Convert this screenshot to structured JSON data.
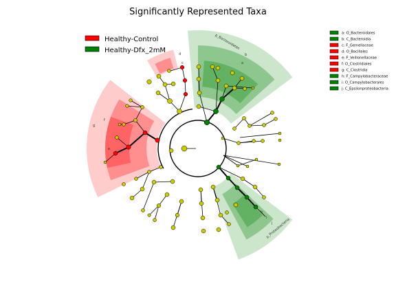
{
  "title": "Significantly Represented Taxa",
  "legend": {
    "groups": [
      {
        "label": "Healthy-Control",
        "color": "#ff0000"
      },
      {
        "label": "Healthy-Dfx_2mM",
        "color": "#008000"
      }
    ]
  },
  "key": [
    {
      "code": "a",
      "label": "a: O_Bacteroidales",
      "color": "#008000"
    },
    {
      "code": "b",
      "label": "b: C_Bacteroidia",
      "color": "#008000"
    },
    {
      "code": "c",
      "label": "c: F_Gemellaceae",
      "color": "#ff0000"
    },
    {
      "code": "d",
      "label": "d: O_Bacillales",
      "color": "#ff0000"
    },
    {
      "code": "e",
      "label": "e: F_Veillonellaceae",
      "color": "#ff0000"
    },
    {
      "code": "f",
      "label": "f: O_Clostridiales",
      "color": "#ff0000"
    },
    {
      "code": "g",
      "label": "g: C_Clostridia",
      "color": "#ff0000"
    },
    {
      "code": "h",
      "label": "h: F_Campylobacteraceae",
      "color": "#008000"
    },
    {
      "code": "i",
      "label": "i: O_Campylobacterales",
      "color": "#008000"
    },
    {
      "code": "j",
      "label": "j: C_Epsilonproteobacteria",
      "color": "#008000"
    }
  ],
  "clade_labels": {
    "bacteroidetes": "p_Bacteroidetes",
    "proteobacteria": "p_Proteobacteria",
    "a": "a",
    "b": "b",
    "c": "c",
    "d": "d",
    "e": "e",
    "f": "f",
    "g": "g",
    "h": "h",
    "i": "i",
    "j": "j"
  }
}
